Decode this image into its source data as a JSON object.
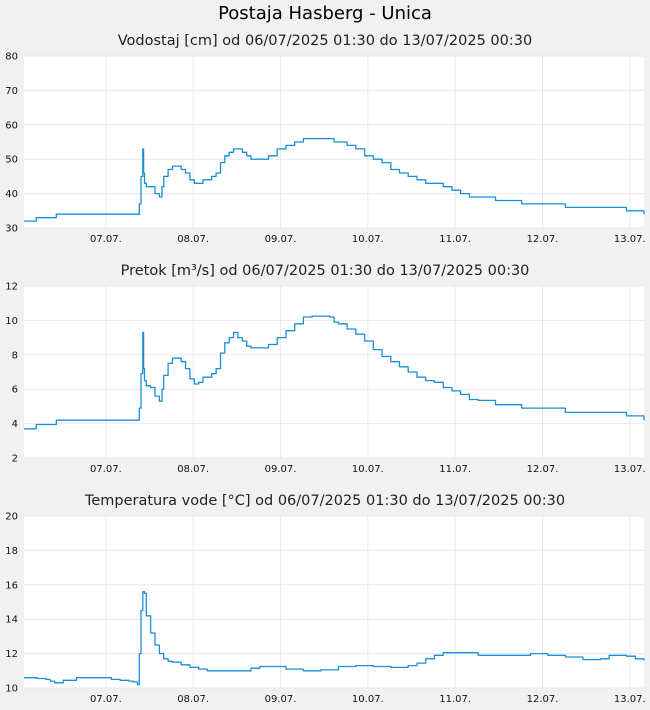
{
  "title": "Postaja Hasberg - Unica",
  "colors": {
    "line": "#1a8fd6",
    "plot_bg": "#ffffff",
    "page_bg": "#f1f1f1",
    "grid": "#e9e9e9"
  },
  "chart_data": [
    {
      "type": "line",
      "title": "Vodostaj [cm] od 06/07/2025 01:30 do 13/07/2025 00:30",
      "ylim": [
        30,
        80
      ],
      "yticks": [
        "30",
        "40",
        "50",
        "60",
        "70",
        "80"
      ],
      "xlim": [
        0,
        7.1
      ],
      "xticks": [
        {
          "x": 0.9375,
          "label": "07.07."
        },
        {
          "x": 1.9375,
          "label": "08.07."
        },
        {
          "x": 2.9375,
          "label": "09.07."
        },
        {
          "x": 3.9375,
          "label": "10.07."
        },
        {
          "x": 4.9375,
          "label": "11.07."
        },
        {
          "x": 5.9375,
          "label": "12.07."
        },
        {
          "x": 6.9375,
          "label": "13.07."
        }
      ],
      "grid": true,
      "step": true,
      "series": [
        {
          "x": [
            0.0,
            0.13,
            0.14,
            0.35,
            0.37,
            1.3,
            1.32,
            1.34,
            1.36,
            1.37,
            1.38,
            1.4,
            1.45,
            1.5,
            1.55,
            1.58,
            1.6,
            1.65,
            1.7,
            1.75,
            1.8,
            1.85,
            1.9,
            1.95,
            2.0,
            2.05,
            2.1,
            2.15,
            2.2,
            2.25,
            2.3,
            2.35,
            2.4,
            2.45,
            2.5,
            2.55,
            2.6,
            2.65,
            2.7,
            2.8,
            2.9,
            3.0,
            3.1,
            3.2,
            3.3,
            3.4,
            3.5,
            3.55,
            3.6,
            3.7,
            3.8,
            3.9,
            4.0,
            4.1,
            4.2,
            4.3,
            4.4,
            4.5,
            4.6,
            4.7,
            4.8,
            4.9,
            5.0,
            5.1,
            5.2,
            5.3,
            5.4,
            5.5,
            5.6,
            5.7,
            5.8,
            6.2,
            6.3,
            6.9,
            7.0,
            7.1
          ],
          "y": [
            32,
            32,
            33,
            33,
            34,
            34,
            37,
            45,
            53,
            46,
            43,
            42,
            42,
            40,
            39,
            42,
            45,
            47,
            48,
            48,
            47,
            46,
            44,
            43,
            43,
            44,
            44,
            45,
            46,
            49,
            51,
            52,
            53,
            53,
            52,
            51,
            50,
            50,
            50,
            51,
            53,
            54,
            55,
            56,
            56,
            56,
            56,
            55,
            55,
            54,
            53,
            51,
            50,
            49,
            47,
            46,
            45,
            44,
            43,
            43,
            42,
            41,
            40,
            39,
            39,
            39,
            38,
            38,
            38,
            37,
            37,
            36,
            36,
            35,
            35,
            34
          ]
        }
      ]
    },
    {
      "type": "line",
      "title": "Pretok [m³/s] od 06/07/2025 01:30 do 13/07/2025 00:30",
      "ylim": [
        2,
        12
      ],
      "yticks": [
        "2",
        "4",
        "6",
        "8",
        "10",
        "12"
      ],
      "xlim": [
        0,
        7.1
      ],
      "xticks": [
        {
          "x": 0.9375,
          "label": "07.07."
        },
        {
          "x": 1.9375,
          "label": "08.07."
        },
        {
          "x": 2.9375,
          "label": "09.07."
        },
        {
          "x": 3.9375,
          "label": "10.07."
        },
        {
          "x": 4.9375,
          "label": "11.07."
        },
        {
          "x": 5.9375,
          "label": "12.07."
        },
        {
          "x": 6.9375,
          "label": "13.07."
        }
      ],
      "grid": true,
      "step": true,
      "series": [
        {
          "x": [
            0.0,
            0.13,
            0.14,
            0.35,
            0.37,
            1.3,
            1.32,
            1.34,
            1.36,
            1.37,
            1.38,
            1.4,
            1.45,
            1.5,
            1.55,
            1.58,
            1.6,
            1.65,
            1.7,
            1.75,
            1.8,
            1.85,
            1.9,
            1.95,
            2.0,
            2.05,
            2.1,
            2.15,
            2.2,
            2.25,
            2.3,
            2.35,
            2.4,
            2.45,
            2.5,
            2.55,
            2.6,
            2.65,
            2.7,
            2.8,
            2.9,
            3.0,
            3.1,
            3.2,
            3.3,
            3.4,
            3.5,
            3.55,
            3.6,
            3.7,
            3.8,
            3.9,
            4.0,
            4.1,
            4.2,
            4.3,
            4.4,
            4.5,
            4.6,
            4.7,
            4.8,
            4.9,
            5.0,
            5.1,
            5.2,
            5.3,
            5.4,
            5.5,
            5.6,
            5.7,
            5.8,
            6.2,
            6.3,
            6.9,
            7.0,
            7.1
          ],
          "y": [
            3.7,
            3.7,
            3.95,
            3.95,
            4.2,
            4.2,
            4.9,
            6.9,
            9.3,
            7.2,
            6.5,
            6.2,
            6.1,
            5.6,
            5.3,
            6.0,
            6.8,
            7.5,
            7.8,
            7.8,
            7.6,
            7.2,
            6.6,
            6.3,
            6.4,
            6.7,
            6.7,
            6.9,
            7.2,
            8.1,
            8.7,
            9.0,
            9.3,
            9.0,
            8.8,
            8.5,
            8.4,
            8.4,
            8.4,
            8.6,
            9.0,
            9.4,
            9.8,
            10.2,
            10.25,
            10.25,
            10.2,
            9.9,
            9.8,
            9.5,
            9.2,
            8.8,
            8.3,
            7.9,
            7.6,
            7.3,
            7.0,
            6.7,
            6.5,
            6.4,
            6.1,
            5.9,
            5.7,
            5.4,
            5.35,
            5.35,
            5.1,
            5.1,
            5.1,
            4.9,
            4.9,
            4.65,
            4.65,
            4.45,
            4.45,
            4.2
          ]
        }
      ]
    },
    {
      "type": "line",
      "title": "Temperatura vode [°C] od 06/07/2025 01:30 do 13/07/2025 00:30",
      "ylim": [
        10,
        20
      ],
      "yticks": [
        "10",
        "12",
        "14",
        "16",
        "18",
        "20"
      ],
      "xlim": [
        0,
        7.1
      ],
      "xticks": [
        {
          "x": 0.9375,
          "label": "07.07."
        },
        {
          "x": 1.9375,
          "label": "08.07."
        },
        {
          "x": 2.9375,
          "label": "09.07."
        },
        {
          "x": 3.9375,
          "label": "10.07."
        },
        {
          "x": 4.9375,
          "label": "11.07."
        },
        {
          "x": 5.9375,
          "label": "12.07."
        },
        {
          "x": 6.9375,
          "label": "13.07."
        }
      ],
      "grid": true,
      "step": true,
      "series": [
        {
          "x": [
            0.0,
            0.15,
            0.25,
            0.3,
            0.35,
            0.45,
            0.6,
            0.85,
            1.0,
            1.1,
            1.2,
            1.25,
            1.3,
            1.32,
            1.34,
            1.36,
            1.38,
            1.4,
            1.45,
            1.5,
            1.55,
            1.6,
            1.65,
            1.7,
            1.8,
            1.9,
            2.0,
            2.1,
            2.2,
            2.4,
            2.6,
            2.7,
            2.8,
            3.0,
            3.2,
            3.4,
            3.6,
            3.8,
            4.0,
            4.2,
            4.4,
            4.5,
            4.6,
            4.7,
            4.8,
            5.0,
            5.2,
            5.4,
            5.6,
            5.8,
            5.9,
            6.0,
            6.2,
            6.4,
            6.6,
            6.7,
            6.8,
            6.9,
            7.0,
            7.1
          ],
          "y": [
            10.6,
            10.55,
            10.5,
            10.4,
            10.3,
            10.45,
            10.6,
            10.6,
            10.5,
            10.45,
            10.4,
            10.35,
            10.2,
            12.0,
            14.5,
            15.6,
            15.5,
            14.2,
            13.2,
            12.5,
            12.0,
            11.7,
            11.55,
            11.5,
            11.35,
            11.2,
            11.1,
            11.0,
            11.0,
            11.0,
            11.15,
            11.25,
            11.25,
            11.1,
            11.0,
            11.05,
            11.25,
            11.3,
            11.25,
            11.2,
            11.3,
            11.45,
            11.7,
            11.9,
            12.05,
            12.05,
            11.9,
            11.9,
            11.9,
            12.0,
            12.0,
            11.9,
            11.8,
            11.65,
            11.7,
            11.9,
            11.9,
            11.85,
            11.7,
            11.6
          ]
        }
      ]
    }
  ]
}
